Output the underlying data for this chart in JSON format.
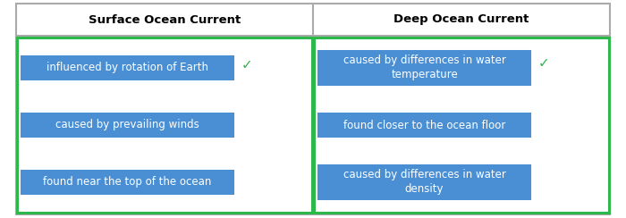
{
  "title_left": "Surface Ocean Current",
  "title_right": "Deep Ocean Current",
  "left_items": [
    {
      "text": "influenced by rotation of Earth",
      "row": 0,
      "has_check": true
    },
    {
      "text": "caused by prevailing winds",
      "row": 1,
      "has_check": false
    },
    {
      "text": "found near the top of the ocean",
      "row": 2,
      "has_check": false
    }
  ],
  "right_items": [
    {
      "text": "caused by differences in water\ntemperature",
      "row": 0,
      "has_check": true
    },
    {
      "text": "found closer to the ocean floor",
      "row": 1,
      "has_check": false
    },
    {
      "text": "caused by differences in water\ndensity",
      "row": 2,
      "has_check": false
    }
  ],
  "box_color": "#4A8FD4",
  "check_color": "#2DB84B",
  "text_color": "#FFFFFF",
  "header_color": "#000000",
  "border_color": "#2DB84B",
  "bg_color": "#FFFFFF",
  "table_border_color": "#AAAAAA"
}
